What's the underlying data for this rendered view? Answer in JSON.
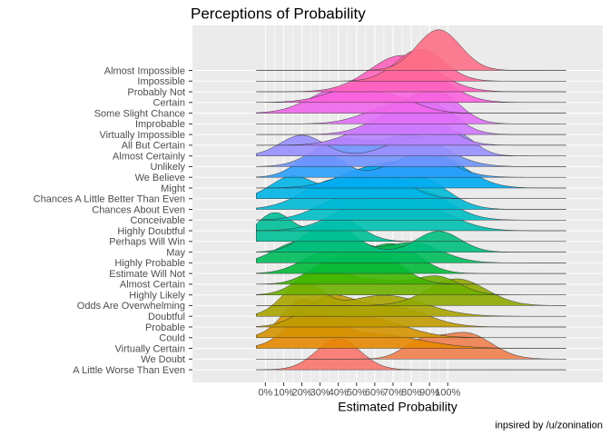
{
  "chart_data": {
    "type": "ridgeline",
    "title": "Perceptions of Probability",
    "xlabel": "Estimated Probability",
    "ylabel": "",
    "caption": "inpsired by /u/zonination",
    "x_ticks": [
      "0%",
      "10%",
      "20%",
      "30%",
      "40%",
      "50%",
      "60%",
      "70%",
      "80%",
      "90%",
      "100%"
    ],
    "xlim": [
      -40,
      185
    ],
    "grid": true,
    "legend": "none",
    "fill_opacity": 0.9,
    "categories": [
      "Almost Impossible",
      "Impossible",
      "Probably Not",
      "Certain",
      "Some Slight Chance",
      "Improbable",
      "Virtually Impossible",
      "All But Certain",
      "Almost Certainly",
      "Unlikely",
      "We Believe",
      "Might",
      "Chances A Little Better Than Even",
      "Chances About Even",
      "Conceivable",
      "Highly Doubtful",
      "Perhaps Will Win",
      "May",
      "Highly Probable",
      "Estimate Will Not",
      "Almost Certain",
      "Highly Likely",
      "Odds Are Overwhelming",
      "Doubtful",
      "Probable",
      "Could",
      "Virtually Certain",
      "We Doubt",
      "A Little Worse Than Even"
    ],
    "series": [
      {
        "color": "#F8766D",
        "peaks": [
          [
            40,
            12,
            1.0
          ]
        ],
        "height": 2.9
      },
      {
        "color": "#F07F4F",
        "peaks": [
          [
            85,
            10,
            0.6
          ],
          [
            110,
            14,
            1.0
          ]
        ],
        "height": 2.5
      },
      {
        "color": "#E58700",
        "peaks": [
          [
            25,
            13,
            1.0
          ],
          [
            60,
            25,
            0.45
          ]
        ],
        "height": 3.4
      },
      {
        "color": "#D49200",
        "peaks": [
          [
            20,
            11,
            1.0
          ],
          [
            55,
            20,
            0.6
          ]
        ],
        "height": 3.6
      },
      {
        "color": "#C09B00",
        "peaks": [
          [
            35,
            14,
            1.0
          ],
          [
            70,
            18,
            0.7
          ]
        ],
        "height": 3.0
      },
      {
        "color": "#A8A400",
        "peaks": [
          [
            20,
            11,
            0.9
          ],
          [
            65,
            22,
            0.6
          ]
        ],
        "height": 3.2
      },
      {
        "color": "#8FAA00",
        "peaks": [
          [
            105,
            16,
            1.0
          ]
        ],
        "height": 2.5
      },
      {
        "color": "#6FB000",
        "peaks": [
          [
            30,
            12,
            1.0
          ],
          [
            60,
            18,
            0.6
          ],
          [
            95,
            12,
            0.7
          ]
        ],
        "height": 2.6
      },
      {
        "color": "#3FB600",
        "peaks": [
          [
            60,
            14,
            1.0
          ],
          [
            35,
            12,
            0.6
          ]
        ],
        "height": 3.2
      },
      {
        "color": "#00BA38",
        "peaks": [
          [
            70,
            14,
            1.0
          ],
          [
            35,
            14,
            0.8
          ]
        ],
        "height": 2.8
      },
      {
        "color": "#00BD5C",
        "peaks": [
          [
            15,
            12,
            0.6
          ],
          [
            40,
            12,
            1.0
          ],
          [
            80,
            16,
            0.7
          ]
        ],
        "height": 3.0
      },
      {
        "color": "#00BF7D",
        "peaks": [
          [
            35,
            13,
            1.0
          ],
          [
            95,
            12,
            0.7
          ]
        ],
        "height": 2.8
      },
      {
        "color": "#00C097",
        "peaks": [
          [
            5,
            10,
            0.6
          ],
          [
            40,
            12,
            0.5
          ]
        ],
        "height": 2.7
      },
      {
        "color": "#00C0AF",
        "peaks": [
          [
            55,
            18,
            0.9
          ],
          [
            85,
            18,
            0.8
          ]
        ],
        "height": 3.2
      },
      {
        "color": "#00BDC4",
        "peaks": [
          [
            45,
            16,
            0.8
          ],
          [
            85,
            16,
            1.0
          ]
        ],
        "height": 2.8
      },
      {
        "color": "#00B9D6",
        "peaks": [
          [
            40,
            18,
            0.9
          ],
          [
            85,
            15,
            0.9
          ]
        ],
        "height": 3.0
      },
      {
        "color": "#00B4E6",
        "peaks": [
          [
            15,
            12,
            0.7
          ],
          [
            60,
            15,
            1.0
          ]
        ],
        "height": 3.0
      },
      {
        "color": "#00ABF3",
        "peaks": [
          [
            60,
            18,
            0.7
          ],
          [
            95,
            16,
            1.0
          ]
        ],
        "height": 3.1
      },
      {
        "color": "#2A9FFC",
        "peaks": [
          [
            30,
            12,
            1.0
          ],
          [
            85,
            16,
            0.9
          ]
        ],
        "height": 2.4
      },
      {
        "color": "#6F93FF",
        "peaks": [
          [
            40,
            14,
            0.8
          ],
          [
            80,
            18,
            1.0
          ]
        ],
        "height": 3.0
      },
      {
        "color": "#9890FF",
        "peaks": [
          [
            20,
            12,
            1.0
          ],
          [
            80,
            14,
            0.8
          ],
          [
            105,
            10,
            1.0
          ]
        ],
        "height": 2.3
      },
      {
        "color": "#B883FF",
        "peaks": [
          [
            85,
            14,
            1.0
          ],
          [
            60,
            16,
            0.5
          ]
        ],
        "height": 3.6
      },
      {
        "color": "#CF78FF",
        "peaks": [
          [
            75,
            16,
            1.0
          ],
          [
            95,
            12,
            0.8
          ]
        ],
        "height": 3.0
      },
      {
        "color": "#E16FF7",
        "peaks": [
          [
            95,
            12,
            1.0
          ],
          [
            70,
            16,
            0.6
          ]
        ],
        "height": 3.2
      },
      {
        "color": "#F066EB",
        "peaks": [
          [
            40,
            16,
            1.0
          ],
          [
            70,
            14,
            0.6
          ]
        ],
        "height": 2.4
      },
      {
        "color": "#F962DD",
        "peaks": [
          [
            85,
            16,
            1.0
          ],
          [
            55,
            18,
            0.6
          ]
        ],
        "height": 3.2
      },
      {
        "color": "#FF62BC",
        "peaks": [
          [
            75,
            18,
            1.0
          ]
        ],
        "height": 3.4
      },
      {
        "color": "#FF6699",
        "peaks": [
          [
            85,
            13,
            1.0
          ]
        ],
        "height": 3.0
      },
      {
        "color": "#FD6F86",
        "peaks": [
          [
            95,
            12,
            1.0
          ]
        ],
        "height": 3.8
      }
    ]
  }
}
